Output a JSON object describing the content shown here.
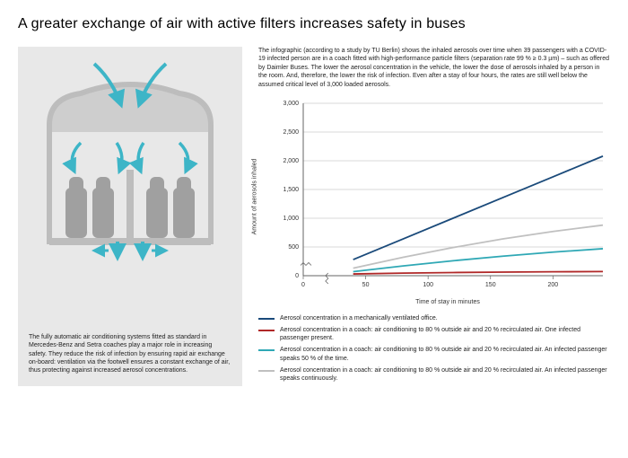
{
  "title": "A greater exchange of air with active filters increases safety in buses",
  "left_caption": "The fully automatic air conditioning systems fitted as standard in Mercedes-Benz and Setra coaches play a major role in increasing safety. They reduce the risk of infection by ensuring rapid air exchange on-board: ventilation via the footwell ensures a constant exchange of air, thus protecting against increased aerosol concentrations.",
  "intro": "The infographic (according to a study by TU Berlin) shows the inhaled aerosols over time when 39 passengers with a COVID-19 infected person are in a coach fitted with high-performance particle filters (separation rate 99 % ≥ 0.3 µm) – such as offered by Daimler Buses. The lower the aerosol concentration in the vehicle, the lower the dose of aerosols inhaled by a person in the room. And, therefore, the lower the risk of infection. Even after a stay of four hours, the rates are still well below the assumed critical level of 3,000 loaded aerosols.",
  "illustration": {
    "bus_fill": "#bdbdbd",
    "seat_fill": "#a0a0a0",
    "arrow_color": "#3db5c7",
    "bg": "#e8e8e8"
  },
  "chart": {
    "type": "line",
    "ylabel": "Amount of aerosols inhaled",
    "xlabel": "Time of stay in minutes",
    "xlim": [
      0,
      240
    ],
    "ylim": [
      0,
      3000
    ],
    "xticks": [
      0,
      50,
      100,
      150,
      200
    ],
    "xtick_labels": [
      "0",
      "50",
      "100",
      "150",
      "200"
    ],
    "yticks": [
      0,
      500,
      1000,
      1500,
      2000,
      2500,
      3000
    ],
    "ytick_labels": [
      "0",
      "500",
      "1,000",
      "1,500",
      "2,000",
      "2,500",
      "3,000"
    ],
    "grid_color": "#cccccc",
    "axis_color": "#666666",
    "tick_fontsize": 7,
    "background": "#ffffff",
    "series": [
      {
        "label": "Aerosol concentration in a mechanically ventilated office.",
        "color": "#1a4a7a",
        "width": 1.8,
        "points": [
          [
            40,
            280
          ],
          [
            80,
            640
          ],
          [
            120,
            1000
          ],
          [
            160,
            1360
          ],
          [
            200,
            1720
          ],
          [
            240,
            2080
          ]
        ]
      },
      {
        "label": "Aerosol concentration in a coach: air conditioning to 80 % outside air and 20 % recirculated air. One infected passenger present.",
        "color": "#b02828",
        "width": 1.8,
        "points": [
          [
            40,
            30
          ],
          [
            80,
            45
          ],
          [
            120,
            55
          ],
          [
            160,
            62
          ],
          [
            200,
            68
          ],
          [
            240,
            72
          ]
        ]
      },
      {
        "label": "Aerosol concentration in a coach: air conditioning to 80 % outside air and 20 % recirculated air. An infected passenger speaks 50 % of the time.",
        "color": "#2fa8b5",
        "width": 1.8,
        "points": [
          [
            40,
            70
          ],
          [
            80,
            170
          ],
          [
            120,
            260
          ],
          [
            160,
            340
          ],
          [
            200,
            410
          ],
          [
            240,
            470
          ]
        ]
      },
      {
        "label": "Aerosol concentration in a coach: air conditioning to 80 % outside air and 20 % recirculated air. An infected passenger speaks continuously.",
        "color": "#c0c0c0",
        "width": 1.8,
        "points": [
          [
            40,
            130
          ],
          [
            80,
            320
          ],
          [
            120,
            490
          ],
          [
            160,
            640
          ],
          [
            200,
            770
          ],
          [
            240,
            880
          ]
        ]
      }
    ]
  }
}
